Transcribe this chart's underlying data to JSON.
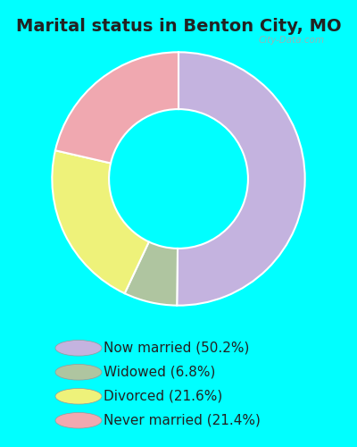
{
  "title": "Marital status in Benton City, MO",
  "background_color": "#00FFFF",
  "chart_bg_color": "#dff0e8",
  "slices": [
    50.2,
    6.8,
    21.6,
    21.4
  ],
  "colors": [
    "#c4b3df",
    "#afc5a0",
    "#eef27a",
    "#f0a8b0"
  ],
  "labels": [
    "Now married (50.2%)",
    "Widowed (6.8%)",
    "Divorced (21.6%)",
    "Never married (21.4%)"
  ],
  "legend_colors": [
    "#c4b3df",
    "#afc5a0",
    "#eef27a",
    "#f0a8b0"
  ],
  "watermark": "City-Data.com",
  "title_fontsize": 14,
  "legend_fontsize": 11,
  "title_color": "#222222"
}
